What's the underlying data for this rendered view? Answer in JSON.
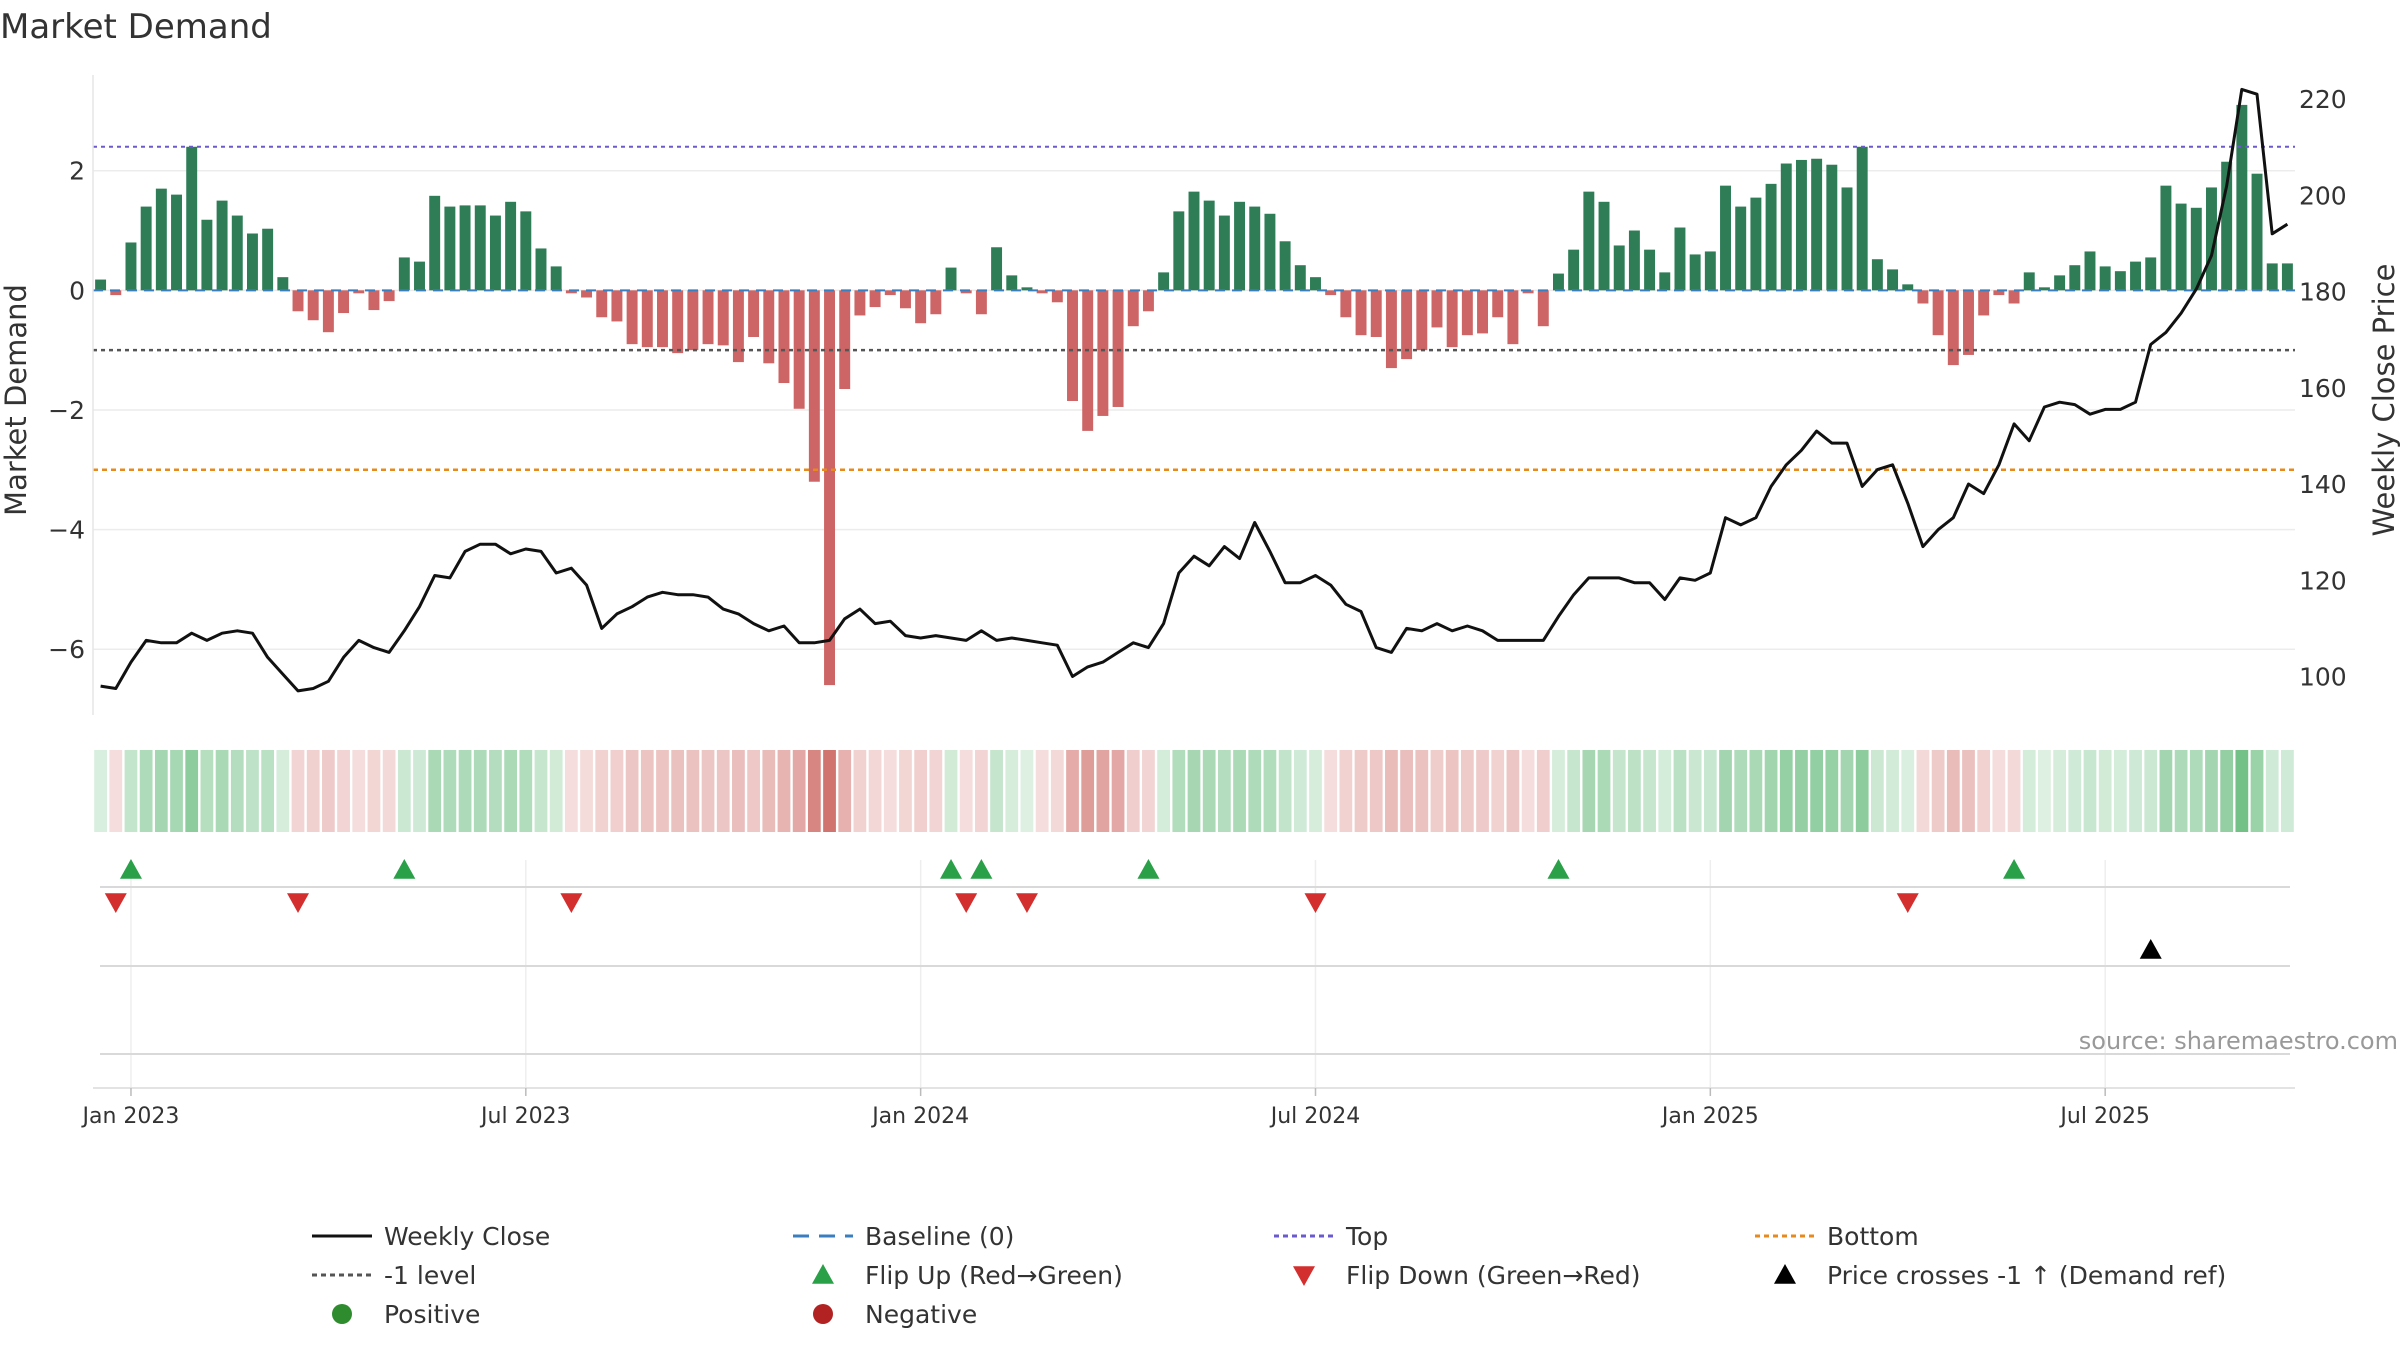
{
  "chart_data": {
    "type": "bar",
    "title": "Market Demand",
    "ylabel_left": "Market Demand",
    "ylabel_right": "Weekly Close Price",
    "source": "source: sharemaestro.com",
    "ylim_left": [
      -7.1,
      3.6
    ],
    "ylim_right": [
      92,
      225
    ],
    "left_ticks": [
      2,
      0,
      -2,
      -4,
      -6
    ],
    "left_tick_labels": [
      "2",
      "0",
      "−2",
      "−4",
      "−6"
    ],
    "right_ticks": [
      220,
      200,
      180,
      160,
      140,
      120,
      100
    ],
    "right_tick_labels": [
      "220",
      "200",
      "180",
      "160",
      "140",
      "120",
      "100"
    ],
    "x_tick_labels": [
      "Jan 2023",
      "Jul 2023",
      "Jan 2024",
      "Jul 2024",
      "Jan 2025",
      "Jul 2025"
    ],
    "x_tick_weeks": [
      2,
      28,
      54,
      80,
      106,
      132
    ],
    "reference_lines": {
      "top": 2.4,
      "minus_one": -1.0,
      "bottom": -3.0,
      "baseline": 0
    },
    "demand_values": [
      0.18,
      -0.08,
      0.8,
      1.4,
      1.7,
      1.6,
      2.4,
      1.18,
      1.5,
      1.25,
      0.95,
      1.03,
      0.22,
      -0.35,
      -0.5,
      -0.7,
      -0.38,
      -0.05,
      -0.33,
      -0.18,
      0.55,
      0.48,
      1.58,
      1.4,
      1.42,
      1.42,
      1.25,
      1.48,
      1.32,
      0.7,
      0.4,
      -0.05,
      -0.12,
      -0.45,
      -0.52,
      -0.9,
      -0.95,
      -0.95,
      -1.05,
      -1.0,
      -0.9,
      -0.92,
      -1.2,
      -0.78,
      -1.22,
      -1.55,
      -1.98,
      -3.2,
      -6.6,
      -1.65,
      -0.42,
      -0.28,
      -0.08,
      -0.3,
      -0.55,
      -0.4,
      0.38,
      -0.05,
      -0.4,
      0.72,
      0.25,
      0.05,
      -0.05,
      -0.2,
      -1.85,
      -2.35,
      -2.1,
      -1.95,
      -0.6,
      -0.35,
      0.3,
      1.32,
      1.65,
      1.5,
      1.25,
      1.48,
      1.4,
      1.28,
      0.82,
      0.42,
      0.22,
      -0.08,
      -0.45,
      -0.75,
      -0.78,
      -1.3,
      -1.15,
      -1.0,
      -0.62,
      -0.95,
      -0.75,
      -0.72,
      -0.45,
      -0.9,
      -0.05,
      -0.6,
      0.28,
      0.68,
      1.65,
      1.48,
      0.75,
      1.0,
      0.68,
      0.3,
      1.05,
      0.6,
      0.65,
      1.75,
      1.4,
      1.55,
      1.78,
      2.12,
      2.18,
      2.2,
      2.1,
      1.72,
      2.4,
      0.52,
      0.35,
      0.1,
      -0.22,
      -0.75,
      -1.25,
      -1.08,
      -0.42,
      -0.08,
      -0.22,
      0.3,
      0.05,
      0.25,
      0.42,
      0.65,
      0.4,
      0.32,
      0.48,
      0.55,
      1.75,
      1.45,
      1.38,
      1.72,
      2.15,
      3.1,
      1.95,
      0.45,
      0.45
    ],
    "weekly_close": [
      98,
      97.5,
      103,
      107.5,
      107,
      107,
      109,
      107.5,
      109,
      109.5,
      109,
      104,
      100.5,
      97,
      97.5,
      99,
      104,
      107.5,
      106,
      105,
      109.5,
      114.5,
      121,
      120.5,
      126,
      127.5,
      127.5,
      125.5,
      126.5,
      126,
      121.5,
      122.5,
      119,
      110,
      113,
      114.5,
      116.5,
      117.5,
      117,
      117,
      116.5,
      114,
      113,
      111,
      109.5,
      110.5,
      107,
      107,
      107.5,
      112,
      114,
      111,
      111.5,
      108.5,
      108,
      108.5,
      108,
      107.5,
      109.5,
      107.5,
      108,
      107.5,
      107,
      106.5,
      100,
      102,
      103,
      105,
      107,
      106,
      111,
      121.5,
      125,
      123,
      127,
      124.5,
      132,
      126,
      119.5,
      119.5,
      121,
      119,
      115,
      113.5,
      106,
      105,
      110,
      109.5,
      111,
      109.5,
      110.5,
      109.5,
      107.5,
      107.5,
      107.5,
      107.5,
      112.5,
      117,
      120.5,
      120.5,
      120.5,
      119.5,
      119.5,
      116,
      120.5,
      120,
      121.5,
      133,
      131.5,
      133,
      139.5,
      144,
      147,
      151,
      148.5,
      148.5,
      139.5,
      143,
      144,
      136,
      127,
      130.5,
      133,
      140,
      138,
      144,
      152.5,
      149,
      156,
      157,
      156.5,
      154.5,
      155.5,
      155.5,
      157,
      169,
      171.5,
      175.5,
      180.5,
      187.5,
      202,
      222,
      221,
      192,
      194
    ],
    "flip_up_weeks": [
      2,
      20,
      56,
      58,
      69,
      96,
      126
    ],
    "flip_down_weeks": [
      1,
      13,
      31,
      57,
      61,
      80,
      119
    ],
    "price_cross_weeks": [
      135
    ],
    "legend": [
      {
        "label": "Weekly Close",
        "kind": "line",
        "color": "#111111"
      },
      {
        "label": "Baseline (0)",
        "kind": "dash",
        "color": "#3a7ebf"
      },
      {
        "label": "Top",
        "kind": "dot",
        "color": "#6a5acd"
      },
      {
        "label": "Bottom",
        "kind": "dot",
        "color": "#e8891c"
      },
      {
        "label": "-1 level",
        "kind": "dot",
        "color": "#555555"
      },
      {
        "label": "Flip Up (Red→Green)",
        "kind": "tri-up",
        "color": "#2aa048"
      },
      {
        "label": "Flip Down (Green→Red)",
        "kind": "tri-down",
        "color": "#d32f2f"
      },
      {
        "label": "Price crosses -1 ↑ (Demand ref)",
        "kind": "tri-up",
        "color": "#000000"
      },
      {
        "label": "Positive",
        "kind": "circle",
        "color": "#2e8b2e"
      },
      {
        "label": "Negative",
        "kind": "circle",
        "color": "#b22222"
      }
    ],
    "colors": {
      "positive_bar": "#2e7d57",
      "negative_bar": "#cd6465",
      "close_line": "#111111",
      "strip_positive": "#6abd7f",
      "strip_negative": "#cf6b66"
    }
  }
}
